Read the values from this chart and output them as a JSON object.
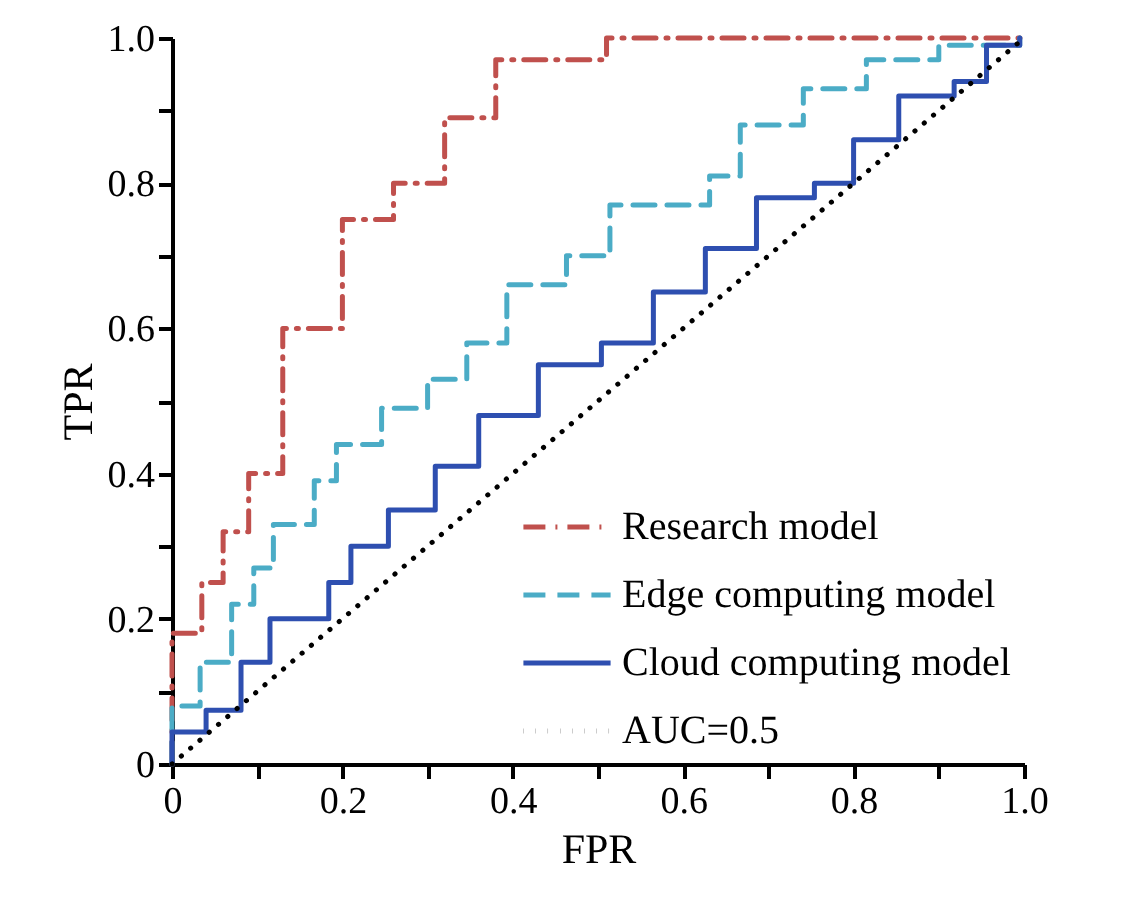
{
  "chart_data": {
    "type": "line",
    "xlabel": "FPR",
    "ylabel": "TPR",
    "xlim": [
      0,
      1
    ],
    "ylim": [
      0,
      1
    ],
    "xticks": [
      0,
      {
        "value": 0.1,
        "label": null
      },
      0.2,
      {
        "value": 0.3,
        "label": null
      },
      0.4,
      {
        "value": 0.5,
        "label": null
      },
      0.6,
      {
        "value": 0.7,
        "label": null
      },
      0.8,
      {
        "value": 0.9,
        "label": null
      },
      {
        "value": 1,
        "label": "1.0"
      }
    ],
    "yticks": [
      0,
      {
        "value": 0.1,
        "label": null
      },
      0.2,
      {
        "value": 0.3,
        "label": null
      },
      0.4,
      {
        "value": 0.5,
        "label": null
      },
      0.6,
      {
        "value": 0.7,
        "label": null
      },
      0.8,
      {
        "value": 0.9,
        "label": null
      },
      {
        "value": 1,
        "label": "1.0"
      }
    ],
    "grid": false,
    "legend": "bottom right",
    "marker": "none",
    "series": [
      {
        "name": "Research model",
        "color": "#c0504d",
        "line_style": "dashdot",
        "x": [
          0,
          0,
          0.035,
          0.035,
          0.06,
          0.06,
          0.09,
          0.09,
          0.13,
          0.13,
          0.2,
          0.2,
          0.26,
          0.26,
          0.32,
          0.32,
          0.38,
          0.38,
          0.51,
          0.51,
          1
        ],
        "values": [
          0,
          0.18,
          0.18,
          0.25,
          0.25,
          0.32,
          0.32,
          0.4,
          0.4,
          0.6,
          0.6,
          0.75,
          0.75,
          0.8,
          0.8,
          0.89,
          0.89,
          0.97,
          0.97,
          1,
          1
        ]
      },
      {
        "name": "Edge computing model",
        "color": "#4bacc6",
        "line_style": "dashed",
        "x": [
          0,
          0,
          0.033,
          0.033,
          0.07,
          0.07,
          0.096,
          0.096,
          0.119,
          0.119,
          0.167,
          0.167,
          0.193,
          0.193,
          0.246,
          0.246,
          0.3,
          0.3,
          0.346,
          0.346,
          0.393,
          0.393,
          0.463,
          0.463,
          0.514,
          0.514,
          0.631,
          0.631,
          0.667,
          0.667,
          0.741,
          0.741,
          0.815,
          0.815,
          0.9,
          0.9,
          0.995,
          0.995
        ],
        "values": [
          0,
          0.08,
          0.08,
          0.14,
          0.14,
          0.22,
          0.22,
          0.27,
          0.27,
          0.33,
          0.33,
          0.39,
          0.39,
          0.44,
          0.44,
          0.49,
          0.49,
          0.53,
          0.53,
          0.58,
          0.58,
          0.66,
          0.66,
          0.7,
          0.7,
          0.77,
          0.77,
          0.81,
          0.81,
          0.88,
          0.88,
          0.93,
          0.93,
          0.97,
          0.97,
          0.99,
          0.99,
          1
        ]
      },
      {
        "name": "Cloud computing model",
        "color": "#2e4fb0",
        "line_style": "solid",
        "x": [
          0,
          0,
          0.04,
          0.04,
          0.081,
          0.081,
          0.115,
          0.115,
          0.184,
          0.184,
          0.21,
          0.21,
          0.254,
          0.254,
          0.309,
          0.309,
          0.36,
          0.36,
          0.43,
          0.43,
          0.504,
          0.504,
          0.565,
          0.565,
          0.626,
          0.626,
          0.686,
          0.686,
          0.754,
          0.754,
          0.8,
          0.8,
          0.853,
          0.853,
          0.918,
          0.918,
          0.956,
          0.956,
          0.995,
          0.995
        ],
        "values": [
          0,
          0.044,
          0.044,
          0.074,
          0.074,
          0.14,
          0.14,
          0.2,
          0.2,
          0.25,
          0.25,
          0.3,
          0.3,
          0.35,
          0.35,
          0.41,
          0.41,
          0.48,
          0.48,
          0.55,
          0.55,
          0.58,
          0.58,
          0.65,
          0.65,
          0.71,
          0.71,
          0.78,
          0.78,
          0.8,
          0.8,
          0.86,
          0.86,
          0.92,
          0.92,
          0.94,
          0.94,
          0.99,
          0.99,
          1
        ]
      },
      {
        "name": "AUC=0.5",
        "color": "#000000",
        "line_style": "dotted",
        "x": [
          0,
          1
        ],
        "values": [
          0,
          1
        ]
      }
    ]
  }
}
